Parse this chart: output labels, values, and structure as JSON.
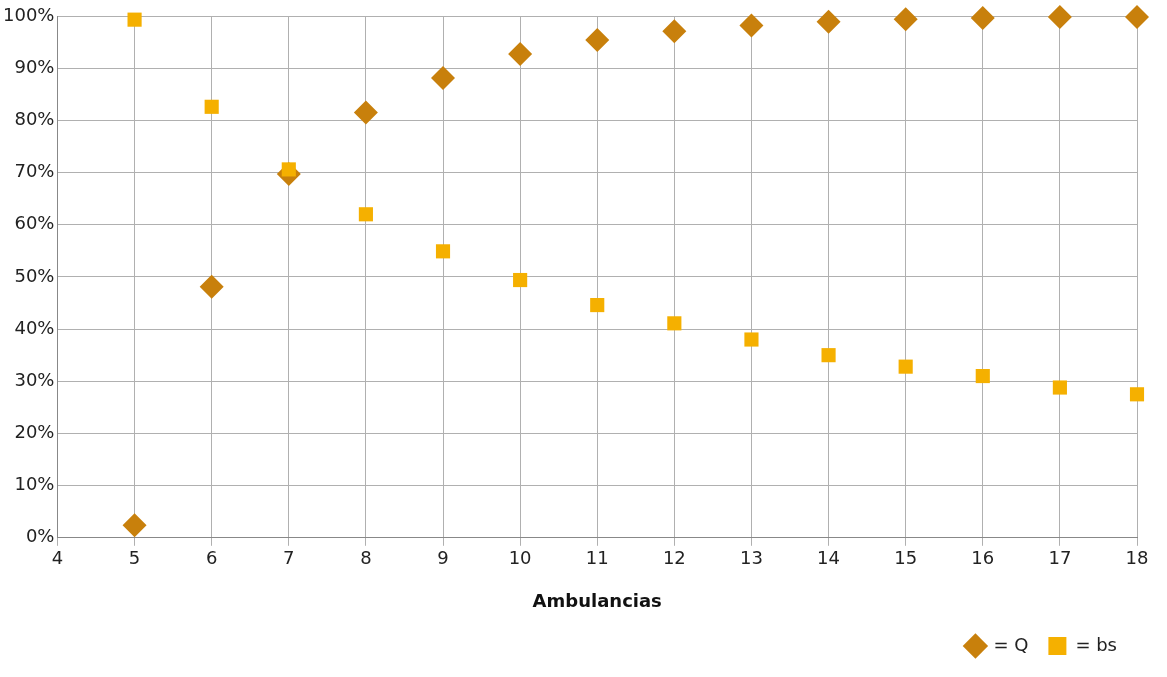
{
  "chart_data": {
    "type": "scatter",
    "xlabel": "Ambulancias",
    "x": [
      5,
      6,
      7,
      8,
      9,
      10,
      11,
      12,
      13,
      14,
      15,
      16,
      17,
      18
    ],
    "series": [
      {
        "name": "= Q",
        "color": "#c8800c",
        "marker": "diamond",
        "values": [
          2.4,
          48.1,
          69.7,
          81.5,
          88.1,
          92.7,
          95.4,
          97.1,
          98.2,
          98.9,
          99.4,
          99.6,
          99.8,
          99.8
        ]
      },
      {
        "name": "= bs",
        "color": "#f5b000",
        "marker": "square",
        "values": [
          99.3,
          82.6,
          70.6,
          62.0,
          54.9,
          49.4,
          44.6,
          41.1,
          38.0,
          35.0,
          32.8,
          31.0,
          28.8,
          27.5
        ]
      }
    ],
    "xlim": [
      4,
      18
    ],
    "xticks": [
      4,
      5,
      6,
      7,
      8,
      9,
      10,
      11,
      12,
      13,
      14,
      15,
      16,
      17,
      18
    ],
    "ylim": [
      0,
      100
    ],
    "yticks": [
      {
        "value": 0,
        "label": "0%"
      },
      {
        "value": 10,
        "label": "10%"
      },
      {
        "value": 20,
        "label": "20%"
      },
      {
        "value": 30,
        "label": "30%"
      },
      {
        "value": 40,
        "label": "40%"
      },
      {
        "value": 50,
        "label": "50%"
      },
      {
        "value": 60,
        "label": "60%"
      },
      {
        "value": 70,
        "label": "70%"
      },
      {
        "value": 80,
        "label": "80%"
      },
      {
        "value": 90,
        "label": "90%"
      },
      {
        "value": 100,
        "label": "100%"
      }
    ],
    "grid": true,
    "legend": "bottom right"
  }
}
